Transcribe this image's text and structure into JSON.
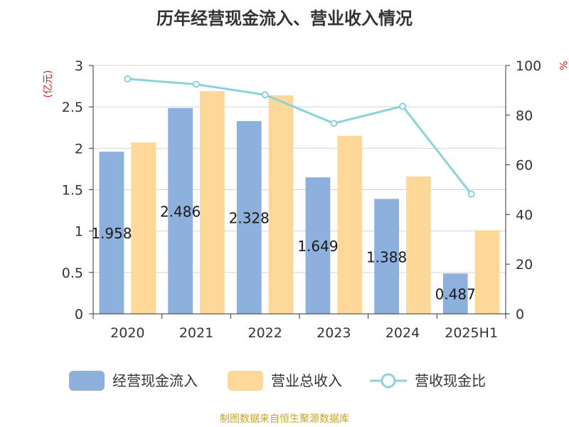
{
  "chart_data": {
    "type": "bar",
    "title": "历年经营现金流入、营业收入情况",
    "categories": [
      "2020",
      "2021",
      "2022",
      "2023",
      "2024",
      "2025H1"
    ],
    "left_axis": {
      "unit": "(亿元)",
      "range": [
        0,
        3
      ],
      "ticks": [
        "0",
        "0.5",
        "1",
        "1.5",
        "2",
        "2.5",
        "3"
      ]
    },
    "right_axis": {
      "unit": "%",
      "range": [
        0,
        100
      ],
      "ticks": [
        "0",
        "20",
        "40",
        "60",
        "80",
        "100"
      ]
    },
    "series": [
      {
        "name": "经营现金流入",
        "type": "bar",
        "axis": "left",
        "color": "#8eb0dc",
        "values": [
          1.958,
          2.486,
          2.328,
          1.649,
          1.388,
          0.487
        ],
        "labels": [
          "1.958",
          "2.486",
          "2.328",
          "1.649",
          "1.388",
          "0.487"
        ]
      },
      {
        "name": "营业总收入",
        "type": "bar",
        "axis": "left",
        "color": "#fdd899",
        "values": [
          2.07,
          2.69,
          2.64,
          2.15,
          1.66,
          1.01
        ]
      },
      {
        "name": "营收现金比",
        "type": "line",
        "axis": "right",
        "color": "#8ad3d8",
        "values": [
          94.6,
          92.4,
          88.2,
          76.7,
          83.6,
          48.2
        ]
      }
    ],
    "grid": true,
    "legend": "bottom"
  },
  "footer": {
    "source": "制图数据来自恒生聚源数据库"
  }
}
